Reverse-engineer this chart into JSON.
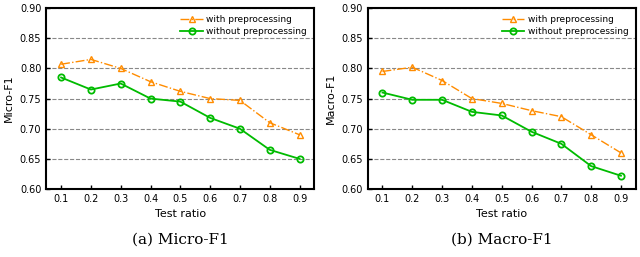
{
  "x": [
    0.1,
    0.2,
    0.3,
    0.4,
    0.5,
    0.6,
    0.7,
    0.8,
    0.9
  ],
  "micro_with": [
    0.807,
    0.815,
    0.8,
    0.778,
    0.762,
    0.75,
    0.747,
    0.71,
    0.69
  ],
  "micro_without": [
    0.785,
    0.765,
    0.775,
    0.75,
    0.745,
    0.718,
    0.7,
    0.665,
    0.65
  ],
  "macro_with": [
    0.795,
    0.802,
    0.78,
    0.75,
    0.742,
    0.73,
    0.72,
    0.69,
    0.66
  ],
  "macro_without": [
    0.76,
    0.748,
    0.748,
    0.728,
    0.722,
    0.695,
    0.675,
    0.638,
    0.622
  ],
  "color_with": "#FF8C00",
  "color_without": "#00BB00",
  "ylim": [
    0.6,
    0.9
  ],
  "yticks": [
    0.6,
    0.65,
    0.7,
    0.75,
    0.8,
    0.85,
    0.9
  ],
  "xticks": [
    0.1,
    0.2,
    0.3,
    0.4,
    0.5,
    0.6,
    0.7,
    0.8,
    0.9
  ],
  "xlabel": "Test ratio",
  "ylabel_micro": "Micro-F1",
  "ylabel_macro": "Macro-F1",
  "label_with": "with preprocessing",
  "label_without": "without preprocessing",
  "caption_a": "(a) Micro-F1",
  "caption_b": "(b) Macro-F1"
}
